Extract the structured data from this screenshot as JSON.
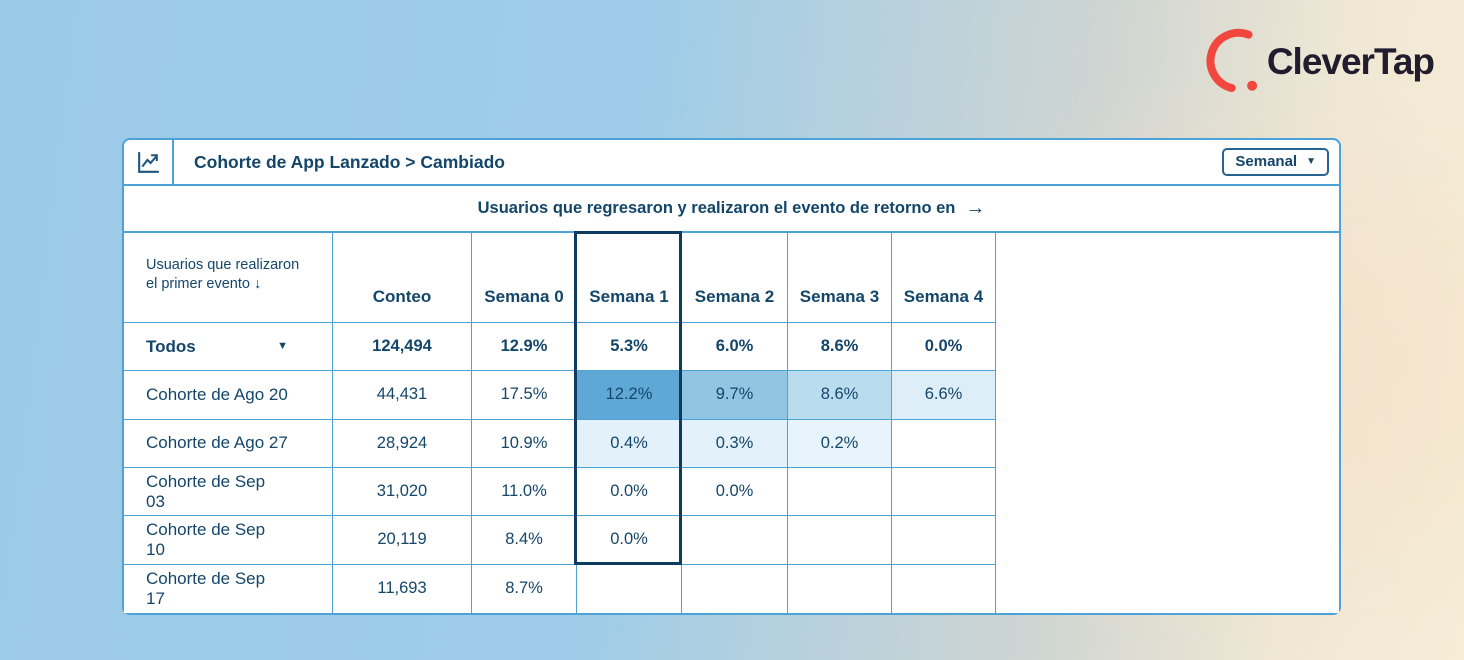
{
  "brand": {
    "name": "CleverTap",
    "arc_color": "#f2473f",
    "text_color": "#211d2e"
  },
  "widget": {
    "title": "Cohorte de App Lanzado > Cambiado",
    "period_selector": {
      "label": "Semanal",
      "caret": "▼"
    },
    "subtitle": "Usuarios que regresaron y realizaron el evento de retorno en",
    "subtitle_arrow": "→"
  },
  "table": {
    "corner_header": {
      "line1": "Usuarios que realizaron",
      "line2": "el primer evento",
      "arrow": "↓"
    },
    "count_header": "Conteo",
    "week_headers": [
      "Semana 0",
      "Semana 1",
      "Semana 2",
      "Semana 3",
      "Semana 4"
    ],
    "highlighted_week": "Semana 1",
    "rows": [
      {
        "label": "Todos",
        "dropdown": true,
        "dropdown_caret": "▼",
        "emphasis": true,
        "count": "124,494",
        "weeks": [
          "12.9%",
          "5.3%",
          "6.0%",
          "8.6%",
          "0.0%"
        ],
        "week_bgs": [
          null,
          null,
          null,
          null,
          null
        ]
      },
      {
        "label": "Cohorte de Ago 20",
        "count": "44,431",
        "weeks": [
          "17.5%",
          "12.2%",
          "9.7%",
          "8.6%",
          "6.6%"
        ],
        "week_bgs": [
          null,
          "#5fa8d5",
          "#92c5e2",
          "#badcef",
          "#ddeef8"
        ]
      },
      {
        "label": "Cohorte de Ago 27",
        "count": "28,924",
        "weeks": [
          "10.9%",
          "0.4%",
          "0.3%",
          "0.2%",
          null
        ],
        "week_bgs": [
          null,
          "#e3f1fa",
          "#e3f1fa",
          "#e8f4fb",
          null
        ]
      },
      {
        "label": "Cohorte de Sep 03",
        "count": "31,020",
        "weeks": [
          "11.0%",
          "0.0%",
          "0.0%",
          null,
          null
        ],
        "week_bgs": [
          null,
          null,
          null,
          null,
          null
        ]
      },
      {
        "label": "Cohorte de Sep 10",
        "count": "20,119",
        "weeks": [
          "8.4%",
          "0.0%",
          null,
          null,
          null
        ],
        "week_bgs": [
          null,
          null,
          null,
          null,
          null
        ]
      },
      {
        "label": "Cohorte de Sep 17",
        "count": "11,693",
        "weeks": [
          "8.7%",
          null,
          null,
          null,
          null
        ],
        "week_bgs": [
          null,
          null,
          null,
          null,
          null
        ]
      }
    ]
  },
  "colors": {
    "ink": "#14466a",
    "grid_line": "#4da3d8",
    "highlight_border": "#0e3c5f",
    "background_left": "#9bcae8",
    "background_right": "#f5edd6"
  }
}
